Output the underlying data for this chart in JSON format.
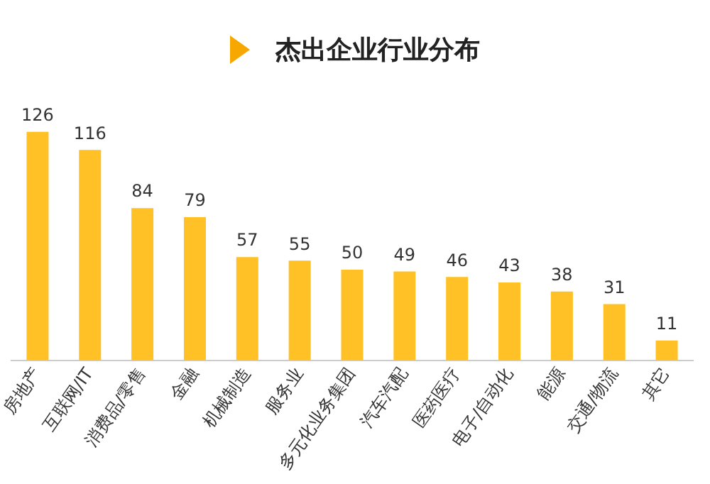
{
  "chart_data": {
    "type": "bar",
    "title": "杰出企业行业分布",
    "categories": [
      "房地产",
      "互联网/IT",
      "消费品/零售",
      "金融",
      "机械制造",
      "服务业",
      "多元化业务集团",
      "汽车汽配",
      "医药医疗",
      "电子/自动化",
      "能源",
      "交通/物流",
      "其它"
    ],
    "values": [
      126,
      116,
      84,
      79,
      57,
      55,
      50,
      49,
      46,
      43,
      38,
      31,
      11
    ],
    "color": "#ffc125",
    "data_labels": true,
    "tick_labels": "x",
    "grid": false,
    "legend": false
  }
}
